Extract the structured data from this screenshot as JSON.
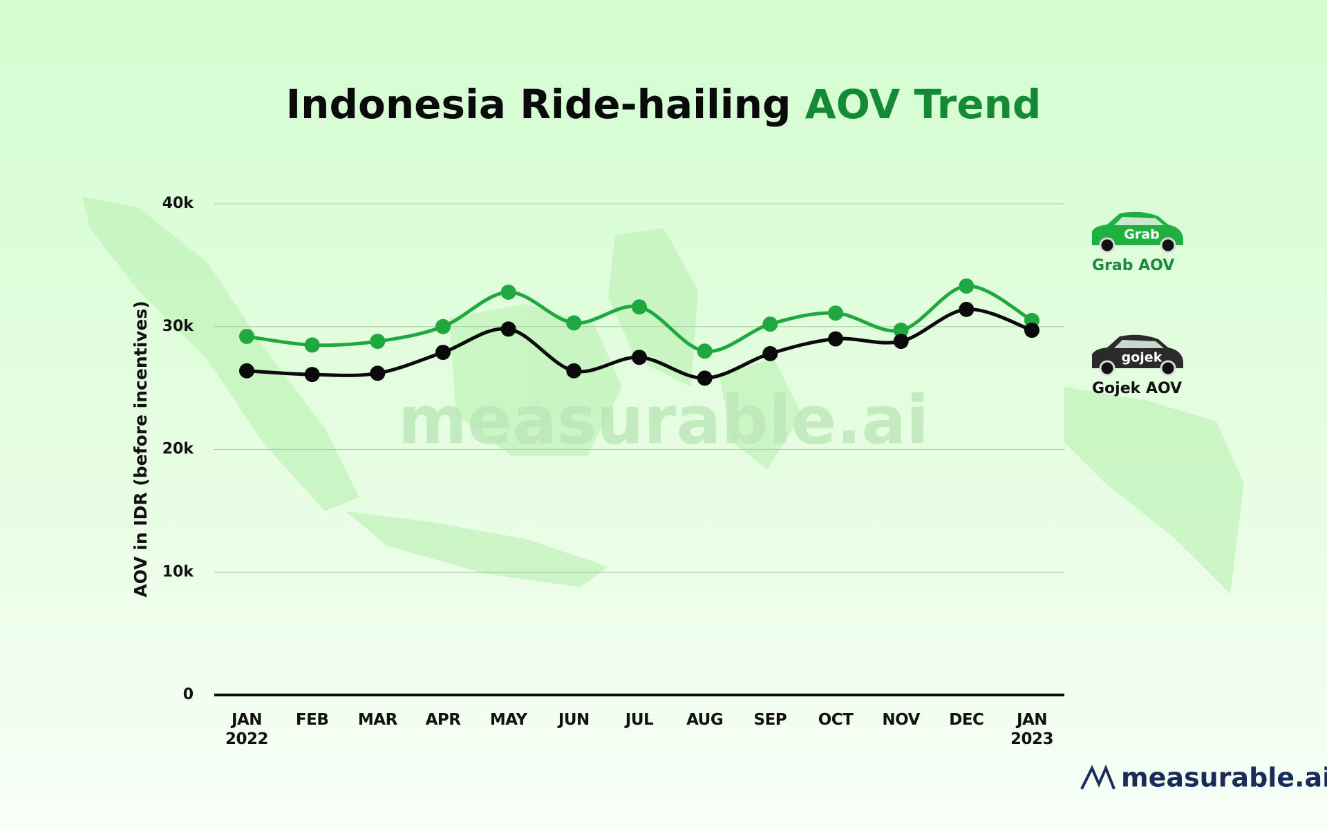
{
  "chart_data": {
    "type": "line",
    "title": "Indonesia Ride-hailing",
    "title_highlight": "AOV Trend",
    "y_label": "AOV in IDR (before incentives)",
    "categories": [
      "JAN\n2022",
      "FEB",
      "MAR",
      "APR",
      "MAY",
      "JUN",
      "JUL",
      "AUG",
      "SEP",
      "OCT",
      "NOV",
      "DEC",
      "JAN\n2023"
    ],
    "series": [
      {
        "name": "Grab AOV",
        "badge": "Grab",
        "color": "#1fa83f",
        "car_color": "#1fb03f",
        "values": [
          29200,
          28500,
          28800,
          30000,
          32800,
          30300,
          31600,
          28000,
          30200,
          31100,
          29700,
          33300,
          30500
        ]
      },
      {
        "name": "Gojek AOV",
        "badge": "gojek",
        "color": "#0a0a0a",
        "car_color": "#2a2a2a",
        "values": [
          26400,
          26100,
          26200,
          27900,
          29800,
          26400,
          27500,
          25800,
          27800,
          29000,
          28800,
          31400,
          29700
        ]
      }
    ],
    "ylim": [
      0,
      40000
    ],
    "yticks": [
      0,
      {
        "value": 10000,
        "label": "10k"
      },
      {
        "value": 20000,
        "label": "20k"
      },
      {
        "value": 30000,
        "label": "30k"
      },
      {
        "value": 40000,
        "label": "40k"
      }
    ],
    "grid": true,
    "watermark": "measurable.ai",
    "brand": "measurable.ai"
  }
}
